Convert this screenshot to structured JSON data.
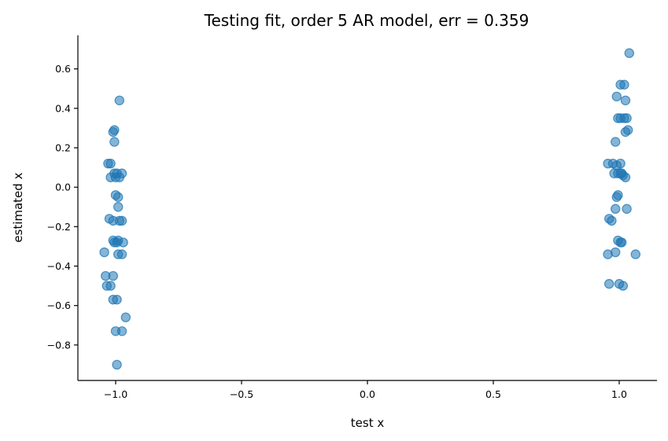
{
  "chart_data": {
    "type": "scatter",
    "title": "Testing fit, order 5 AR model, err = 0.359",
    "xlabel": "test x",
    "ylabel": "estimated x",
    "xlim": [
      -1.15,
      1.15
    ],
    "ylim": [
      -0.98,
      0.77
    ],
    "x_ticks": [
      -1.0,
      -0.5,
      0.0,
      0.5,
      1.0
    ],
    "x_tick_labels": [
      "−1.0",
      "−0.5",
      "0.0",
      "0.5",
      "1.0"
    ],
    "y_ticks": [
      -0.8,
      -0.6,
      -0.4,
      -0.2,
      0.0,
      0.2,
      0.4,
      0.6
    ],
    "y_tick_labels": [
      "−0.8",
      "−0.6",
      "−0.4",
      "−0.2",
      "0.0",
      "0.2",
      "0.4",
      "0.6"
    ],
    "grid": false,
    "color": "#1f77b4",
    "points": [
      {
        "x": -0.985,
        "y": 0.44
      },
      {
        "x": -1.005,
        "y": 0.29
      },
      {
        "x": -1.01,
        "y": 0.28
      },
      {
        "x": -1.005,
        "y": 0.23
      },
      {
        "x": -1.03,
        "y": 0.12
      },
      {
        "x": -1.02,
        "y": 0.12
      },
      {
        "x": -1.005,
        "y": 0.07
      },
      {
        "x": -0.995,
        "y": 0.07
      },
      {
        "x": -0.975,
        "y": 0.07
      },
      {
        "x": -1.02,
        "y": 0.05
      },
      {
        "x": -1.0,
        "y": 0.05
      },
      {
        "x": -0.985,
        "y": 0.05
      },
      {
        "x": -1.0,
        "y": -0.04
      },
      {
        "x": -0.99,
        "y": -0.05
      },
      {
        "x": -0.99,
        "y": -0.1
      },
      {
        "x": -1.025,
        "y": -0.16
      },
      {
        "x": -1.01,
        "y": -0.17
      },
      {
        "x": -0.985,
        "y": -0.17
      },
      {
        "x": -0.975,
        "y": -0.17
      },
      {
        "x": -1.01,
        "y": -0.27
      },
      {
        "x": -0.99,
        "y": -0.27
      },
      {
        "x": -1.005,
        "y": -0.28
      },
      {
        "x": -0.995,
        "y": -0.28
      },
      {
        "x": -0.97,
        "y": -0.28
      },
      {
        "x": -1.045,
        "y": -0.33
      },
      {
        "x": -0.99,
        "y": -0.34
      },
      {
        "x": -0.975,
        "y": -0.34
      },
      {
        "x": -1.04,
        "y": -0.45
      },
      {
        "x": -1.01,
        "y": -0.45
      },
      {
        "x": -1.035,
        "y": -0.5
      },
      {
        "x": -1.02,
        "y": -0.5
      },
      {
        "x": -1.01,
        "y": -0.57
      },
      {
        "x": -0.995,
        "y": -0.57
      },
      {
        "x": -0.96,
        "y": -0.66
      },
      {
        "x": -1.0,
        "y": -0.73
      },
      {
        "x": -0.975,
        "y": -0.73
      },
      {
        "x": -0.995,
        "y": -0.9
      },
      {
        "x": 1.04,
        "y": 0.68
      },
      {
        "x": 1.005,
        "y": 0.52
      },
      {
        "x": 1.02,
        "y": 0.52
      },
      {
        "x": 0.99,
        "y": 0.46
      },
      {
        "x": 1.025,
        "y": 0.44
      },
      {
        "x": 0.995,
        "y": 0.35
      },
      {
        "x": 1.005,
        "y": 0.35
      },
      {
        "x": 1.02,
        "y": 0.35
      },
      {
        "x": 1.03,
        "y": 0.35
      },
      {
        "x": 1.035,
        "y": 0.29
      },
      {
        "x": 1.025,
        "y": 0.28
      },
      {
        "x": 0.985,
        "y": 0.23
      },
      {
        "x": 0.955,
        "y": 0.12
      },
      {
        "x": 0.975,
        "y": 0.12
      },
      {
        "x": 0.99,
        "y": 0.11
      },
      {
        "x": 1.005,
        "y": 0.12
      },
      {
        "x": 0.98,
        "y": 0.07
      },
      {
        "x": 0.995,
        "y": 0.07
      },
      {
        "x": 1.005,
        "y": 0.07
      },
      {
        "x": 1.01,
        "y": 0.07
      },
      {
        "x": 1.015,
        "y": 0.06
      },
      {
        "x": 1.025,
        "y": 0.05
      },
      {
        "x": 0.995,
        "y": -0.04
      },
      {
        "x": 0.99,
        "y": -0.05
      },
      {
        "x": 0.985,
        "y": -0.11
      },
      {
        "x": 1.03,
        "y": -0.11
      },
      {
        "x": 0.96,
        "y": -0.16
      },
      {
        "x": 0.97,
        "y": -0.17
      },
      {
        "x": 0.995,
        "y": -0.27
      },
      {
        "x": 1.005,
        "y": -0.28
      },
      {
        "x": 1.01,
        "y": -0.28
      },
      {
        "x": 0.985,
        "y": -0.33
      },
      {
        "x": 0.955,
        "y": -0.34
      },
      {
        "x": 1.065,
        "y": -0.34
      },
      {
        "x": 0.96,
        "y": -0.49
      },
      {
        "x": 1.0,
        "y": -0.49
      },
      {
        "x": 1.015,
        "y": -0.5
      }
    ]
  }
}
